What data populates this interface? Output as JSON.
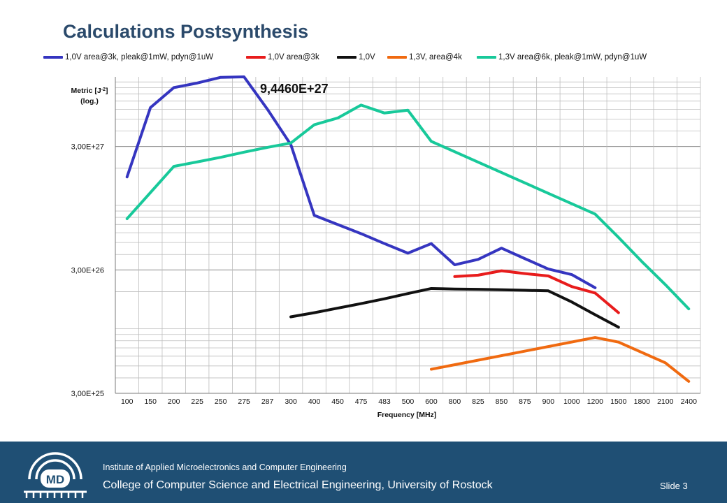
{
  "slide": {
    "title": "Calculations Postsynthesis",
    "annotation": "9,4460E+27",
    "footer_institute": "Institute of Applied Microelectronics and Computer Engineering",
    "footer_college": "College of Computer Science and Electrical Engineering, University of Rostock",
    "footer_slide": "Slide 3",
    "logo_text": "MD",
    "colors": {
      "footer_bg": "#1f4f74",
      "title": "#2b4a6b"
    }
  },
  "chart_data": {
    "type": "line",
    "ylabel_line1": "Metric [J",
    "ylabel_sup": "-2",
    "ylabel_line1_end": "]",
    "ylabel_line2": "(log.)",
    "xlabel": "Frequency  [MHz]",
    "yscale": "log",
    "ylim": [
      3e+25,
      1.1e+28
    ],
    "y_ticks": [
      {
        "value": 3e+25,
        "label": "3,00E+25"
      },
      {
        "value": 3e+26,
        "label": "3,00E+26"
      },
      {
        "value": 3e+27,
        "label": "3,00E+27"
      }
    ],
    "grid": true,
    "legend_position": "top",
    "categories": [
      "100",
      "150",
      "200",
      "225",
      "250",
      "275",
      "287",
      "300",
      "400",
      "450",
      "475",
      "483",
      "500",
      "600",
      "800",
      "825",
      "850",
      "875",
      "900",
      "1000",
      "1200",
      "1500",
      "1800",
      "2100",
      "2400"
    ],
    "series": [
      {
        "name": "1,0V area@3k, pleak@1mW, pdyn@1uW",
        "color": "#3535c0",
        "values": [
          1.7e+27,
          6.2e+27,
          9e+27,
          9.8e+27,
          1.09e+28,
          1.1e+28,
          6e+27,
          3.1e+27,
          8.3e+26,
          7e+26,
          5.9e+26,
          4.9e+26,
          4.1e+26,
          4.9e+26,
          3.3e+26,
          3.65e+26,
          4.5e+26,
          3.7e+26,
          3.05e+26,
          2.75e+26,
          2.15e+26,
          null,
          null,
          null,
          null
        ]
      },
      {
        "name": "1,0V area@3k",
        "color": "#e81c1c",
        "values": [
          null,
          null,
          null,
          null,
          null,
          null,
          null,
          null,
          null,
          null,
          null,
          null,
          null,
          null,
          2.65e+26,
          2.72e+26,
          2.95e+26,
          2.8e+26,
          2.68e+26,
          2.2e+26,
          1.95e+26,
          1.35e+26,
          null,
          null,
          null
        ]
      },
      {
        "name": "1,0V",
        "color": "#111111",
        "values": [
          null,
          null,
          null,
          null,
          null,
          null,
          null,
          1.25e+26,
          1.35e+26,
          1.47e+26,
          1.6e+26,
          1.75e+26,
          1.93e+26,
          2.12e+26,
          2.1e+26,
          2.09e+26,
          2.07e+26,
          2.05e+26,
          2.03e+26,
          1.65e+26,
          1.3e+26,
          1.03e+26,
          null,
          null,
          null
        ]
      },
      {
        "name": "1,3V, area@4k",
        "color": "#f06a10",
        "values": [
          null,
          null,
          null,
          null,
          null,
          null,
          null,
          null,
          null,
          null,
          null,
          null,
          null,
          4.7e+25,
          null,
          null,
          null,
          null,
          null,
          null,
          8.5e+25,
          7.8e+25,
          null,
          5.3e+25,
          3.75e+25
        ]
      },
      {
        "name": "1,3V area@6k, pleak@1mW, pdyn@1uW",
        "color": "#18c99a",
        "values": [
          7.8e+26,
          1.27e+27,
          2.07e+27,
          2.25e+27,
          2.45e+27,
          2.7e+27,
          2.95e+27,
          3.2e+27,
          4.5e+27,
          5.1e+27,
          6.5e+27,
          5.6e+27,
          5.9e+27,
          3.3e+27,
          null,
          null,
          null,
          null,
          null,
          null,
          8.5e+26,
          5.5e+26,
          3.5e+26,
          2.28e+26,
          1.45e+26
        ]
      }
    ]
  }
}
